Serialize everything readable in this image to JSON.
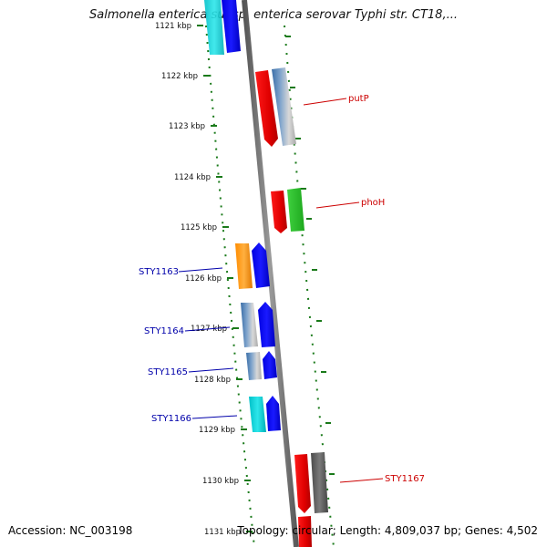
{
  "title": "Salmonella enterica subsp. enterica serovar Typhi str. CT18,...",
  "footer": {
    "accession": "Accession: NC_003198",
    "stats": "Topology: circular; Length: 4,809,037 bp; Genes: 4,502"
  },
  "colors": {
    "backbone": "#7f7f7f",
    "tick": "#1a7a1a",
    "forward_label": "#cc0000",
    "reverse_label": "#0000aa"
  },
  "ticks": [
    "1121 kbp",
    "1122 kbp",
    "1123 kbp",
    "1124 kbp",
    "1125 kbp",
    "1126 kbp",
    "1127 kbp",
    "1128 kbp",
    "1129 kbp",
    "1130 kbp",
    "1131 kbp"
  ],
  "gene_labels": {
    "forward": [
      "putP",
      "phoH",
      "STY1167"
    ],
    "reverse": [
      "STY1163",
      "STY1164",
      "STY1165",
      "STY1166"
    ]
  }
}
